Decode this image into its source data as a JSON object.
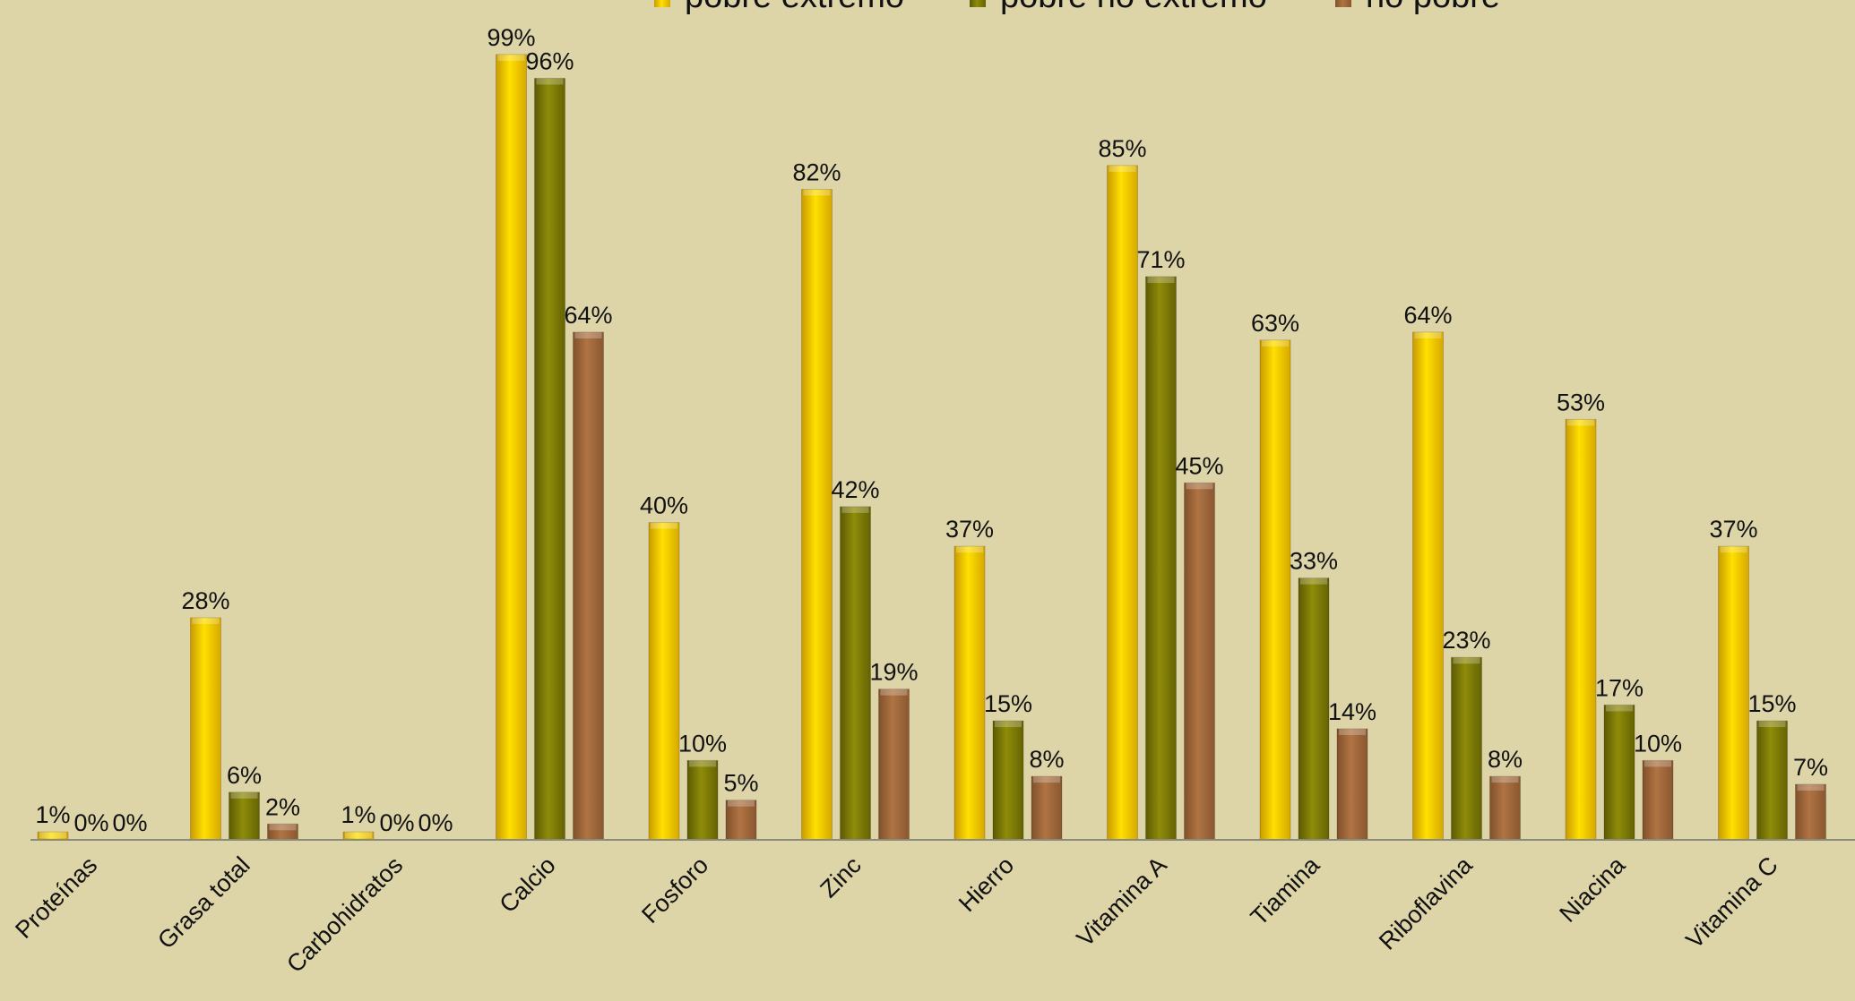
{
  "chart_data": {
    "type": "bar",
    "title": "",
    "xlabel": "",
    "ylabel": "",
    "ylim": [
      0,
      100
    ],
    "grid": false,
    "legend_position": "top",
    "categories": [
      "Proteínas",
      "Grasa total",
      "Carbohidratos",
      "Calcio",
      "Fosforo",
      "Zinc",
      "Hierro",
      "Vitamina A",
      "Tiamina",
      "Riboflavina",
      "Niacina",
      "Vitamina C"
    ],
    "series": [
      {
        "name": "pobre extremo",
        "color": "#f2c800",
        "values": [
          1,
          28,
          1,
          99,
          40,
          82,
          37,
          85,
          63,
          64,
          53,
          37
        ],
        "labels": [
          "1%",
          "28%",
          "1%",
          "99%",
          "40%",
          "82%",
          "37%",
          "85%",
          "63%",
          "64%",
          "53%",
          "37%"
        ]
      },
      {
        "name": "pobre no extremo",
        "color": "#7c7a06",
        "values": [
          0,
          6,
          0,
          96,
          10,
          42,
          15,
          71,
          33,
          23,
          17,
          15
        ],
        "labels": [
          "0%",
          "6%",
          "0%",
          "96%",
          "10%",
          "42%",
          "15%",
          "71%",
          "33%",
          "23%",
          "17%",
          "15%"
        ]
      },
      {
        "name": "no pobre",
        "color": "#a3683a",
        "values": [
          0,
          2,
          0,
          64,
          5,
          19,
          8,
          45,
          14,
          8,
          10,
          7
        ],
        "labels": [
          "0%",
          "2%",
          "0%",
          "64%",
          "5%",
          "19%",
          "8%",
          "45%",
          "14%",
          "8%",
          "10%",
          "7%"
        ]
      }
    ]
  }
}
